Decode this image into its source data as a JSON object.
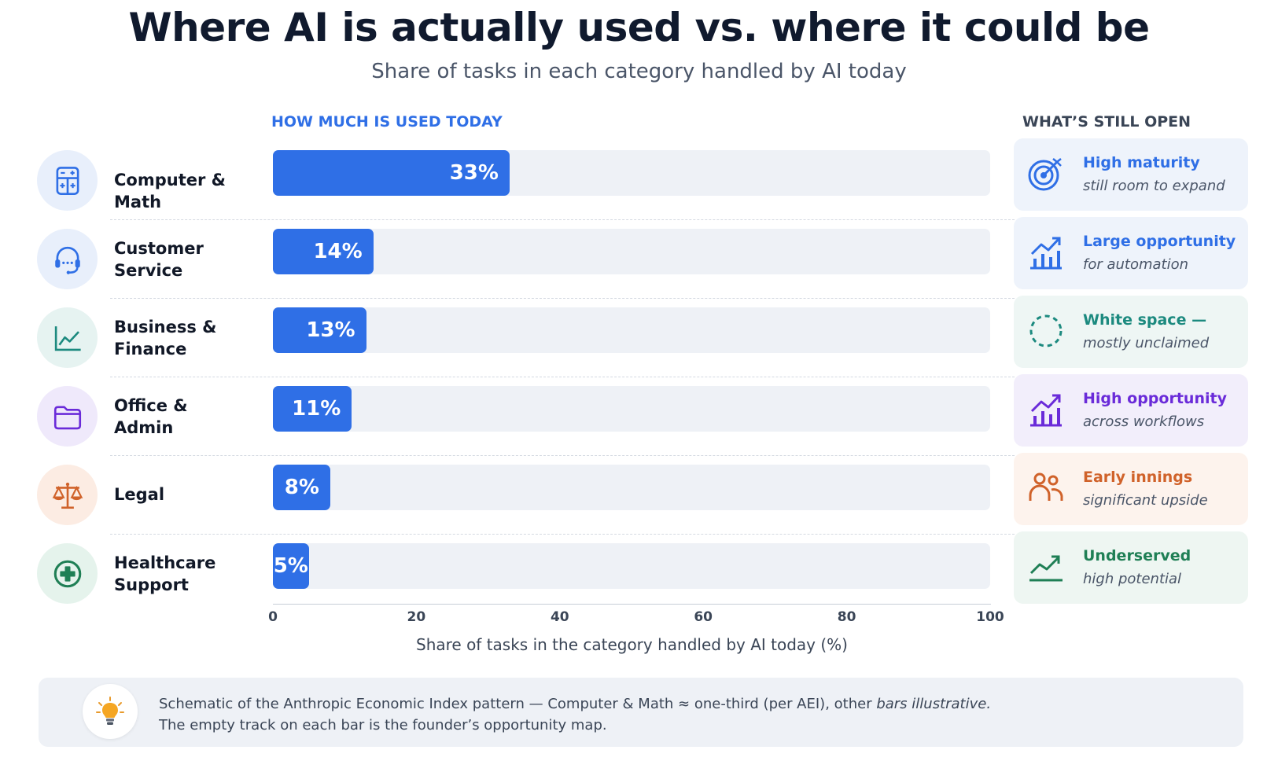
{
  "title": "Where AI is actually used vs. where it could be",
  "subtitle": "Share of tasks in each category handled by AI today",
  "left_header": "HOW MUCH IS USED TODAY",
  "right_header": "WHAT’S STILL OPEN",
  "colors": {
    "bar": "#2f6fe6",
    "track": "#eef1f6",
    "blue": "#2f6fe6",
    "teal": "#1c8a7f",
    "purple": "#6a2bd9",
    "orange": "#d0622a",
    "green": "#1f7f55"
  },
  "chart_data": {
    "type": "bar",
    "orientation": "horizontal",
    "categories": [
      "Computer & Math",
      "Customer Service",
      "Business & Finance",
      "Office & Admin",
      "Legal",
      "Healthcare Support"
    ],
    "values": [
      33,
      14,
      13,
      11,
      8,
      5
    ],
    "value_labels": [
      "33%",
      "14%",
      "13%",
      "11%",
      "8%",
      "5%"
    ],
    "xlabel": "Share of tasks in the category handled by AI today (%)",
    "xlim": [
      0,
      100
    ],
    "ticks": [
      "0",
      "20",
      "40",
      "60",
      "80",
      "100"
    ],
    "grid": false
  },
  "rows": [
    {
      "label_lines": [
        "Computer & Math"
      ],
      "icon": "calculator-icon",
      "icon_bg": "#e8effb",
      "icon_color": "#2f6fe6",
      "card": {
        "title": "High maturity",
        "sub": "still room to expand",
        "icon": "target-icon",
        "color": "#2f6fe6",
        "bg": "#eef3fb"
      }
    },
    {
      "label_lines": [
        "Customer",
        "Service"
      ],
      "icon": "headset-icon",
      "icon_bg": "#e8effb",
      "icon_color": "#2f6fe6",
      "card": {
        "title": "Large opportunity",
        "sub": "for automation",
        "icon": "growth-chart-icon",
        "color": "#2f6fe6",
        "bg": "#eef3fb"
      }
    },
    {
      "label_lines": [
        "Business &",
        "Finance"
      ],
      "icon": "line-chart-icon",
      "icon_bg": "#e6f3f1",
      "icon_color": "#1c8a7f",
      "card": {
        "title": "White space —",
        "sub": "mostly unclaimed",
        "icon": "dashed-circle-icon",
        "color": "#1c8a7f",
        "bg": "#eef6f4"
      }
    },
    {
      "label_lines": [
        "Office &",
        "Admin"
      ],
      "icon": "folder-icon",
      "icon_bg": "#efe9fb",
      "icon_color": "#6a2bd9",
      "card": {
        "title": "High opportunity",
        "sub": "across workflows",
        "icon": "growth-chart-icon",
        "color": "#6a2bd9",
        "bg": "#f2eefb"
      }
    },
    {
      "label_lines": [
        "Legal"
      ],
      "icon": "scales-icon",
      "icon_bg": "#fcece3",
      "icon_color": "#d0622a",
      "card": {
        "title": "Early innings",
        "sub": "significant upside",
        "icon": "people-icon",
        "color": "#d0622a",
        "bg": "#fdf3ed"
      }
    },
    {
      "label_lines": [
        "Healthcare",
        "Support"
      ],
      "icon": "medical-cross-icon",
      "icon_bg": "#e5f3ec",
      "icon_color": "#1f7f55",
      "card": {
        "title": "Underserved",
        "sub": "high potential",
        "icon": "trend-up-icon",
        "color": "#1f7f55",
        "bg": "#eef6f2"
      }
    }
  ],
  "note": {
    "icon": "lightbulb-icon",
    "line1_main": "Schematic of the Anthropic Economic Index pattern — Computer & Math ≈ one-third (per AEI), other ",
    "line1_italic": "bars illustrative.",
    "line2": "The empty track on each bar is the founder’s opportunity map."
  }
}
